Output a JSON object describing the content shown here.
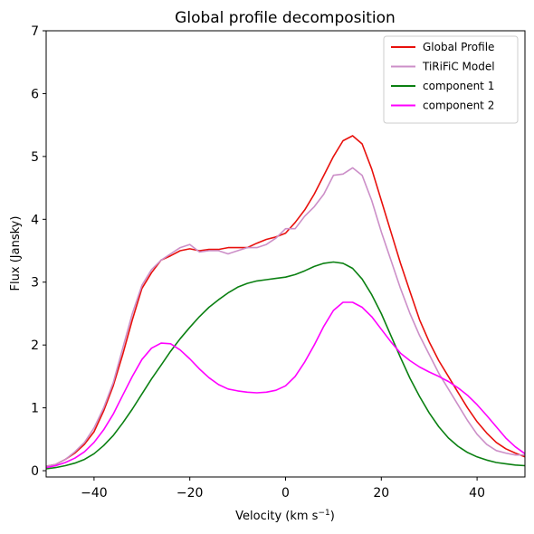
{
  "chart_data": {
    "type": "line",
    "title": "Global profile decomposition",
    "xlabel": "Velocity (km s",
    "xlabel_sup": "−1",
    "xlabel_end": ")",
    "ylabel": "Flux (Jansky)",
    "xlim": [
      -50,
      50
    ],
    "ylim": [
      -0.1,
      7
    ],
    "xticks": [
      -40,
      -20,
      0,
      20,
      40
    ],
    "xtick_labels": [
      "−40",
      "−20",
      "0",
      "20",
      "40"
    ],
    "yticks": [
      0,
      1,
      2,
      3,
      4,
      5,
      6,
      7
    ],
    "ytick_labels": [
      "0",
      "1",
      "2",
      "3",
      "4",
      "5",
      "6",
      "7"
    ],
    "legend_position": "top-right",
    "series": [
      {
        "name": "Global Profile",
        "color": "#e8100c",
        "x": [
          -50,
          -48,
          -46,
          -44,
          -42,
          -40,
          -38,
          -36,
          -34,
          -32,
          -30,
          -28,
          -26,
          -24,
          -22,
          -20,
          -18,
          -16,
          -14,
          -12,
          -10,
          -8,
          -6,
          -4,
          -2,
          0,
          2,
          4,
          6,
          8,
          10,
          12,
          14,
          16,
          18,
          20,
          22,
          24,
          26,
          28,
          30,
          32,
          34,
          36,
          38,
          40,
          42,
          44,
          46,
          48,
          50
        ],
        "y": [
          0.07,
          0.1,
          0.18,
          0.28,
          0.42,
          0.62,
          0.95,
          1.35,
          1.85,
          2.4,
          2.9,
          3.15,
          3.35,
          3.42,
          3.5,
          3.53,
          3.5,
          3.52,
          3.52,
          3.55,
          3.55,
          3.55,
          3.62,
          3.68,
          3.72,
          3.78,
          3.95,
          4.15,
          4.4,
          4.7,
          5.0,
          5.25,
          5.33,
          5.2,
          4.8,
          4.3,
          3.8,
          3.3,
          2.85,
          2.4,
          2.05,
          1.75,
          1.5,
          1.25,
          1.0,
          0.78,
          0.6,
          0.45,
          0.35,
          0.28,
          0.22
        ]
      },
      {
        "name": "TiRiFiC Model",
        "color": "#cc8fc8",
        "x": [
          -50,
          -48,
          -46,
          -44,
          -42,
          -40,
          -38,
          -36,
          -34,
          -32,
          -30,
          -28,
          -26,
          -24,
          -22,
          -20,
          -18,
          -16,
          -14,
          -12,
          -10,
          -8,
          -6,
          -4,
          -2,
          0,
          2,
          4,
          6,
          8,
          10,
          12,
          14,
          16,
          18,
          20,
          22,
          24,
          26,
          28,
          30,
          32,
          34,
          36,
          38,
          40,
          42,
          44,
          46,
          48,
          50
        ],
        "y": [
          0.07,
          0.1,
          0.18,
          0.3,
          0.45,
          0.68,
          1.0,
          1.4,
          1.95,
          2.5,
          2.95,
          3.2,
          3.35,
          3.45,
          3.55,
          3.6,
          3.48,
          3.5,
          3.5,
          3.45,
          3.5,
          3.55,
          3.55,
          3.6,
          3.7,
          3.85,
          3.85,
          4.05,
          4.2,
          4.4,
          4.7,
          4.72,
          4.82,
          4.7,
          4.3,
          3.8,
          3.35,
          2.9,
          2.5,
          2.15,
          1.85,
          1.55,
          1.3,
          1.05,
          0.8,
          0.58,
          0.42,
          0.32,
          0.28,
          0.25,
          0.25
        ]
      },
      {
        "name": "component 1",
        "color": "#0b8012",
        "x": [
          -50,
          -48,
          -46,
          -44,
          -42,
          -40,
          -38,
          -36,
          -34,
          -32,
          -30,
          -28,
          -26,
          -24,
          -22,
          -20,
          -18,
          -16,
          -14,
          -12,
          -10,
          -8,
          -6,
          -4,
          -2,
          0,
          2,
          4,
          6,
          8,
          10,
          12,
          14,
          16,
          18,
          20,
          22,
          24,
          26,
          28,
          30,
          32,
          34,
          36,
          38,
          40,
          42,
          44,
          46,
          48,
          50
        ],
        "y": [
          0.03,
          0.05,
          0.08,
          0.12,
          0.18,
          0.27,
          0.4,
          0.56,
          0.76,
          0.98,
          1.22,
          1.46,
          1.68,
          1.9,
          2.1,
          2.28,
          2.45,
          2.6,
          2.72,
          2.83,
          2.92,
          2.98,
          3.02,
          3.04,
          3.06,
          3.08,
          3.12,
          3.18,
          3.25,
          3.3,
          3.32,
          3.3,
          3.22,
          3.05,
          2.8,
          2.5,
          2.15,
          1.8,
          1.47,
          1.18,
          0.92,
          0.7,
          0.52,
          0.39,
          0.29,
          0.22,
          0.17,
          0.13,
          0.11,
          0.09,
          0.08
        ]
      },
      {
        "name": "component 2",
        "color": "#ff00ff",
        "x": [
          -50,
          -48,
          -46,
          -44,
          -42,
          -40,
          -38,
          -36,
          -34,
          -32,
          -30,
          -28,
          -26,
          -24,
          -22,
          -20,
          -18,
          -16,
          -14,
          -12,
          -10,
          -8,
          -6,
          -4,
          -2,
          0,
          2,
          4,
          6,
          8,
          10,
          12,
          14,
          16,
          18,
          20,
          22,
          24,
          26,
          28,
          30,
          32,
          34,
          36,
          38,
          40,
          42,
          44,
          46,
          48,
          50
        ],
        "y": [
          0.05,
          0.08,
          0.13,
          0.2,
          0.3,
          0.45,
          0.65,
          0.9,
          1.2,
          1.5,
          1.77,
          1.95,
          2.03,
          2.02,
          1.92,
          1.78,
          1.62,
          1.48,
          1.37,
          1.3,
          1.27,
          1.25,
          1.24,
          1.25,
          1.28,
          1.35,
          1.5,
          1.73,
          2.0,
          2.3,
          2.55,
          2.68,
          2.68,
          2.6,
          2.45,
          2.25,
          2.05,
          1.87,
          1.75,
          1.65,
          1.57,
          1.5,
          1.42,
          1.32,
          1.2,
          1.05,
          0.88,
          0.7,
          0.52,
          0.38,
          0.27
        ]
      }
    ]
  }
}
